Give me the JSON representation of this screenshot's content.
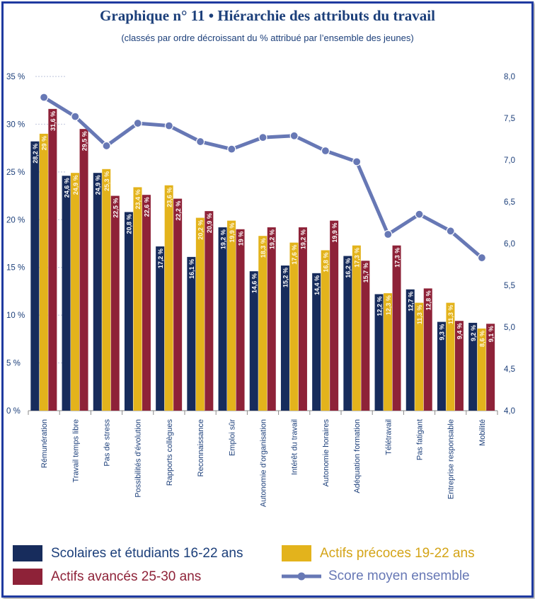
{
  "title": "Graphique n° 11 • Hiérarchie des attributs du travail",
  "subtitle": "(classés par ordre décroissant du % attribué par l’ensemble des jeunes)",
  "colors": {
    "s1": "#172c5c",
    "s2": "#e3b31c",
    "s3": "#8e2238",
    "line": "#6778b5",
    "text": "#1c3f7a"
  },
  "legend": [
    {
      "label": "Scolaires et étudiants 16-22 ans",
      "kind": "box",
      "color": "#172c5c",
      "textColor": "#1c3f7a"
    },
    {
      "label": "Actifs précoces 19-22 ans",
      "kind": "box",
      "color": "#e3b31c",
      "textColor": "#d4a417"
    },
    {
      "label": "Actifs avancés 25-30 ans",
      "kind": "box",
      "color": "#8e2238",
      "textColor": "#8e2238"
    },
    {
      "label": "Score moyen ensemble",
      "kind": "line",
      "color": "#6778b5",
      "textColor": "#6778b5"
    }
  ],
  "chart_data": {
    "type": "bar",
    "categories": [
      "Rémunération",
      "Travail temps libre",
      "Pas de stress",
      "Possibilités d’évolution",
      "Rapports collègues",
      "Reconnaissance",
      "Emploi sûr",
      "Autonomie d’organisation",
      "Intérêt du travail",
      "Autonomie horaires",
      "Adéquation formation",
      "Télétravail",
      "Pas fatigant",
      "Entreprise responsable",
      "Mobilité"
    ],
    "series": [
      {
        "name": "Scolaires et étudiants 16-22 ans",
        "values": [
          28.2,
          24.6,
          24.9,
          20.8,
          17.2,
          16.1,
          19.2,
          14.6,
          15.2,
          14.4,
          16.2,
          12.2,
          12.7,
          9.3,
          9.2
        ],
        "labels": [
          "28,2 %",
          "24,6 %",
          "24,9 %",
          "20,8 %",
          "17,2 %",
          "16,1 %",
          "19,2 %",
          "14,6 %",
          "15,2 %",
          "14,4 %",
          "16,2 %",
          "12,2 %",
          "12,7 %",
          "9,3 %",
          "9,2 %"
        ]
      },
      {
        "name": "Actifs précoces 19-22 ans",
        "values": [
          29,
          24.9,
          25.3,
          23.4,
          23.6,
          20.2,
          19.9,
          18.3,
          17.6,
          16.8,
          17.3,
          12.3,
          11.3,
          11.3,
          8.6
        ],
        "labels": [
          "29 %",
          "24,9 %",
          "25,3 %",
          "23,4 %",
          "23,6 %",
          "20,2 %",
          "19,9 %",
          "18,3 %",
          "17,6 %",
          "16,8 %",
          "17,3 %",
          "12,3 %",
          "11,3 %",
          "11,3 %",
          "8,6 %"
        ]
      },
      {
        "name": "Actifs avancés 25-30 ans",
        "values": [
          31.6,
          29.5,
          22.5,
          22.6,
          22.2,
          20.9,
          19.0,
          19.2,
          19.2,
          19.9,
          15.7,
          17.3,
          12.8,
          9.4,
          9.1
        ],
        "labels": [
          "31,6 %",
          "29,5 %",
          "22,5 %",
          "22,6 %",
          "22,2 %",
          "20,9 %",
          "19 %",
          "19,2 %",
          "19,2 %",
          "19,9 %",
          "15,7 %",
          "17,3 %",
          "12,8 %",
          "9,4 %",
          "9,1 %"
        ]
      }
    ],
    "line": {
      "name": "Score moyen ensemble",
      "values": [
        7.75,
        7.52,
        7.17,
        7.44,
        7.41,
        7.22,
        7.13,
        7.27,
        7.29,
        7.11,
        6.98,
        6.11,
        6.35,
        6.15,
        5.83
      ]
    },
    "yTicksLeft": [
      "0 %",
      "5 %",
      "10 %",
      "15 %",
      "20 %",
      "25 %",
      "30 %",
      "35 %"
    ],
    "yTicksRight": [
      "4,0",
      "4,5",
      "5,0",
      "5,5",
      "6,0",
      "6,5",
      "7,0",
      "7,5",
      "8,0"
    ],
    "ylim_left": [
      0,
      35
    ],
    "ylim_right": [
      4,
      8
    ],
    "grid": false,
    "legend_position": "bottom"
  }
}
